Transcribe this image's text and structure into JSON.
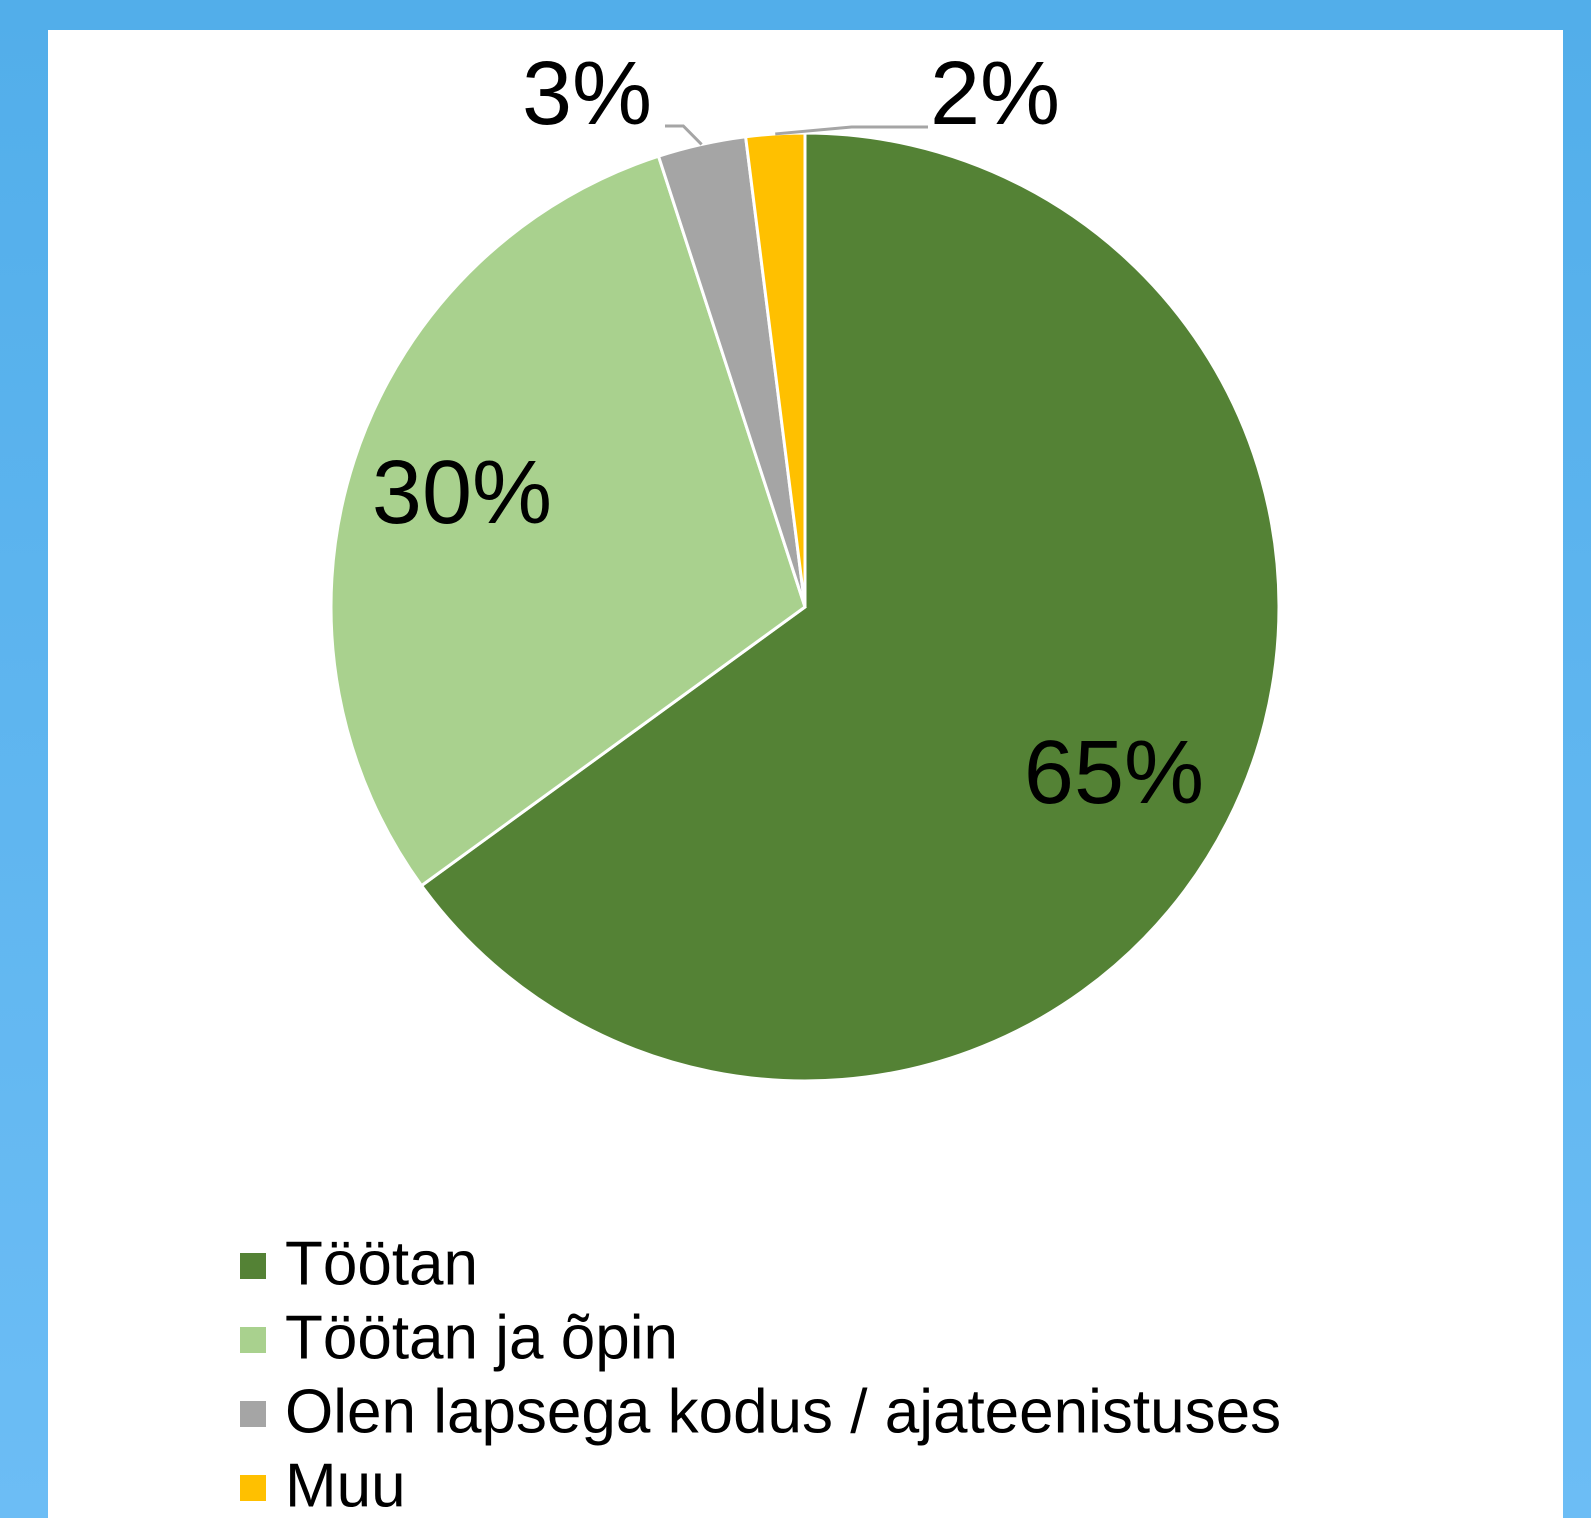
{
  "chart_data": {
    "type": "pie",
    "categories": [
      "Töötan",
      "Töötan ja õpin",
      "Olen lapsega kodus / ajateenistuses",
      "Muu"
    ],
    "values": [
      65,
      30,
      3,
      2
    ],
    "value_labels": [
      "65%",
      "30%",
      "3%",
      "2%"
    ],
    "colors": [
      "#548235",
      "#a9d18e",
      "#a5a5a5",
      "#ffc000"
    ],
    "legend": "bottom"
  }
}
